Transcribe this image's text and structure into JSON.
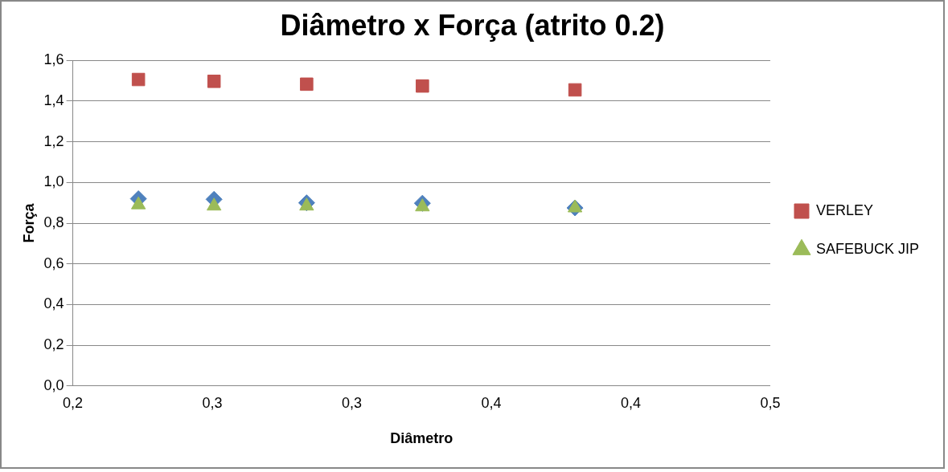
{
  "chart_data": {
    "type": "scatter",
    "title": "Diâmetro x Força (atrito 0.2)",
    "xlabel": "Diâmetro",
    "ylabel": "Força",
    "series": [
      {
        "color": "#4f81bd",
        "marker": "diamond",
        "x": [
          0.2235,
          0.2506,
          0.2838,
          0.3253,
          0.38
        ],
        "values": [
          0.92,
          0.917,
          0.9,
          0.898,
          0.875
        ]
      },
      {
        "name": "VERLEY",
        "color": "#c0504d",
        "marker": "square",
        "x": [
          0.2235,
          0.2506,
          0.2838,
          0.3253,
          0.38
        ],
        "values": [
          1.506,
          1.497,
          1.483,
          1.474,
          1.455
        ]
      },
      {
        "name": "SAFEBUCK JIP",
        "color": "#9bbb59",
        "marker": "triangle",
        "x": [
          0.2235,
          0.2506,
          0.2838,
          0.3253,
          0.38
        ],
        "values": [
          0.89,
          0.884,
          0.884,
          0.88,
          0.875
        ]
      }
    ],
    "xlim": [
      0.2,
      0.45
    ],
    "xticks": [
      {
        "value": 0.2,
        "label": "0,2"
      },
      {
        "value": 0.25,
        "label": "0,3"
      },
      {
        "value": 0.3,
        "label": "0,3"
      },
      {
        "value": 0.35,
        "label": "0,4"
      },
      {
        "value": 0.4,
        "label": "0,4"
      },
      {
        "value": 0.45,
        "label": "0,5"
      }
    ],
    "ylim": [
      0,
      1.6
    ],
    "yticks": [
      {
        "value": 0,
        "label": "0,0"
      },
      {
        "value": 0.2,
        "label": "0,2"
      },
      {
        "value": 0.4,
        "label": "0,4"
      },
      {
        "value": 0.6,
        "label": "0,6"
      },
      {
        "value": 0.8,
        "label": "0,8"
      },
      {
        "value": 1,
        "label": "1,0"
      },
      {
        "value": 1.2,
        "label": "1,2"
      },
      {
        "value": 1.4,
        "label": "1,4"
      },
      {
        "value": 1.6,
        "label": "1,6"
      }
    ],
    "grid": "y",
    "legend": "right"
  }
}
